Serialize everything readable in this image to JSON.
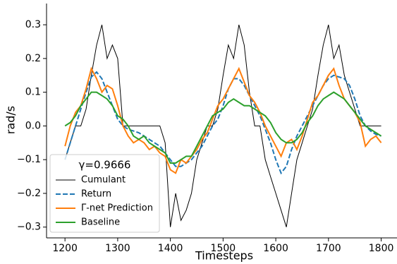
{
  "chart_data": {
    "type": "line",
    "xlabel": "Timesteps",
    "ylabel": "rad/s",
    "legend_title": "γ=0.9666",
    "legend": "lower left",
    "grid": false,
    "x": [
      1200,
      1210,
      1220,
      1230,
      1240,
      1250,
      1260,
      1270,
      1280,
      1290,
      1300,
      1310,
      1320,
      1330,
      1340,
      1350,
      1360,
      1370,
      1380,
      1390,
      1400,
      1410,
      1420,
      1430,
      1440,
      1450,
      1460,
      1470,
      1480,
      1490,
      1500,
      1510,
      1520,
      1530,
      1540,
      1550,
      1560,
      1570,
      1580,
      1590,
      1600,
      1610,
      1620,
      1630,
      1640,
      1650,
      1660,
      1670,
      1680,
      1690,
      1700,
      1710,
      1720,
      1730,
      1740,
      1750,
      1760,
      1770,
      1780,
      1790,
      1800
    ],
    "xlim": [
      1165,
      1830
    ],
    "xticks": [
      1200,
      1300,
      1400,
      1500,
      1600,
      1700,
      1800
    ],
    "ylim": [
      -0.332,
      0.363
    ],
    "yticks": [
      {
        "value": -0.3,
        "label": "−0.3"
      },
      {
        "value": -0.2,
        "label": "−0.2"
      },
      {
        "value": -0.1,
        "label": "−0.1"
      },
      {
        "value": 0,
        "label": "0.0"
      },
      0.1,
      0.2,
      0.3
    ],
    "series": [
      {
        "name": "Cumulant",
        "color": "#000000",
        "linewidth": 1,
        "linestyle": "solid",
        "values": [
          -0.1,
          -0.05,
          0.0,
          0.0,
          0.05,
          0.15,
          0.24,
          0.3,
          0.2,
          0.24,
          0.2,
          0.0,
          0.0,
          0.0,
          0.0,
          0.0,
          0.0,
          0.0,
          0.0,
          -0.05,
          -0.3,
          -0.2,
          -0.28,
          -0.25,
          -0.2,
          -0.1,
          -0.05,
          0.0,
          0.0,
          0.05,
          0.15,
          0.24,
          0.2,
          0.3,
          0.24,
          0.1,
          0.0,
          0.0,
          -0.1,
          -0.15,
          -0.2,
          -0.25,
          -0.3,
          -0.2,
          -0.1,
          -0.05,
          0.0,
          0.05,
          0.15,
          0.24,
          0.3,
          0.2,
          0.24,
          0.15,
          0.1,
          0.05,
          0.0,
          0.0,
          0.0,
          0.0,
          0.0
        ]
      },
      {
        "name": "Return",
        "color": "#1f77b4",
        "linewidth": 2,
        "linestyle": "dashed",
        "values": [
          -0.1,
          -0.05,
          0.0,
          0.05,
          0.1,
          0.145,
          0.16,
          0.14,
          0.1,
          0.06,
          0.02,
          0.0,
          -0.01,
          -0.015,
          -0.02,
          -0.03,
          -0.04,
          -0.05,
          -0.06,
          -0.08,
          -0.1,
          -0.12,
          -0.12,
          -0.11,
          -0.1,
          -0.08,
          -0.06,
          -0.03,
          0.0,
          0.02,
          0.06,
          0.11,
          0.14,
          0.14,
          0.12,
          0.09,
          0.06,
          0.03,
          -0.01,
          -0.05,
          -0.1,
          -0.14,
          -0.12,
          -0.07,
          -0.03,
          0.0,
          0.03,
          0.06,
          0.09,
          0.12,
          0.14,
          0.15,
          0.145,
          0.14,
          0.12,
          0.08,
          0.03,
          0.0,
          -0.015,
          -0.025,
          -0.03
        ]
      },
      {
        "name": "Γ-net Prediction",
        "color": "#ff7f0e",
        "linewidth": 2,
        "linestyle": "solid",
        "values": [
          -0.06,
          0.0,
          0.04,
          0.06,
          0.11,
          0.17,
          0.14,
          0.1,
          0.12,
          0.11,
          0.06,
          0.0,
          -0.03,
          -0.05,
          -0.04,
          -0.05,
          -0.07,
          -0.06,
          -0.08,
          -0.09,
          -0.13,
          -0.14,
          -0.1,
          -0.11,
          -0.09,
          -0.07,
          -0.04,
          -0.02,
          0.02,
          0.06,
          0.08,
          0.11,
          0.14,
          0.17,
          0.13,
          0.09,
          0.07,
          0.04,
          0.0,
          -0.03,
          -0.06,
          -0.09,
          -0.05,
          -0.04,
          -0.07,
          -0.03,
          0.02,
          0.07,
          0.09,
          0.12,
          0.15,
          0.17,
          0.12,
          0.08,
          0.06,
          0.04,
          0.01,
          -0.06,
          -0.04,
          -0.03,
          -0.05
        ]
      },
      {
        "name": "Baseline",
        "color": "#2ca02c",
        "linewidth": 2,
        "linestyle": "solid",
        "values": [
          0.0,
          0.01,
          0.03,
          0.06,
          0.08,
          0.1,
          0.1,
          0.09,
          0.08,
          0.06,
          0.03,
          0.02,
          0.0,
          -0.03,
          -0.04,
          -0.03,
          -0.05,
          -0.06,
          -0.07,
          -0.08,
          -0.11,
          -0.11,
          -0.1,
          -0.09,
          -0.09,
          -0.06,
          -0.03,
          0.0,
          0.03,
          0.04,
          0.05,
          0.07,
          0.08,
          0.07,
          0.06,
          0.06,
          0.05,
          0.04,
          0.03,
          0.01,
          -0.02,
          -0.04,
          -0.05,
          -0.05,
          -0.04,
          -0.02,
          0.01,
          0.03,
          0.06,
          0.08,
          0.09,
          0.1,
          0.09,
          0.08,
          0.06,
          0.04,
          0.02,
          0.0,
          -0.01,
          -0.02,
          -0.03
        ]
      }
    ]
  }
}
